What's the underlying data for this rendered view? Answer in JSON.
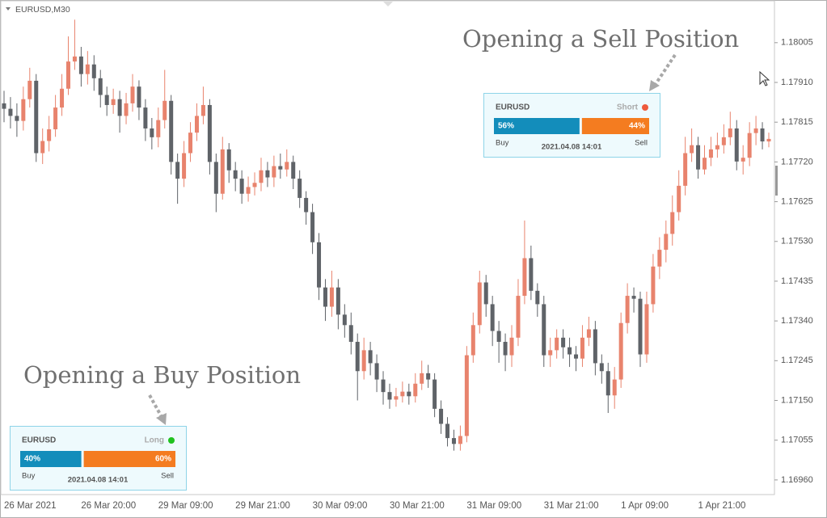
{
  "chart_data": {
    "type": "candlestick",
    "title": "EURUSD,M30",
    "up_color": "#e8836d",
    "down_color": "#5f6368",
    "ylim": [
      1.16925,
      1.18107
    ],
    "yticks": [
      1.18005,
      {
        "value": 1.1791,
        "label": "1.17910"
      },
      1.17815,
      {
        "value": 1.1772,
        "label": "1.17720"
      },
      1.17625,
      {
        "value": 1.1753,
        "label": "1.17530"
      },
      1.17435,
      {
        "value": 1.1734,
        "label": "1.17340"
      },
      1.17245,
      {
        "value": 1.1715,
        "label": "1.17150"
      },
      1.17055,
      {
        "value": 1.1696,
        "label": "1.16960"
      }
    ],
    "annotations": [
      "Opening a Sell Position",
      "Opening a Buy Position"
    ],
    "categories": [
      "26 Mar 2021",
      null,
      null,
      null,
      null,
      null,
      null,
      null,
      null,
      null,
      null,
      null,
      "26 Mar 20:00",
      null,
      null,
      null,
      null,
      null,
      null,
      null,
      null,
      null,
      null,
      null,
      "29 Mar 09:00",
      null,
      null,
      null,
      null,
      null,
      null,
      null,
      null,
      null,
      null,
      null,
      "29 Mar 21:00",
      null,
      null,
      null,
      null,
      null,
      null,
      null,
      null,
      null,
      null,
      null,
      "30 Mar 09:00",
      null,
      null,
      null,
      null,
      null,
      null,
      null,
      null,
      null,
      null,
      null,
      "30 Mar 21:00",
      null,
      null,
      null,
      null,
      null,
      null,
      null,
      null,
      null,
      null,
      null,
      "31 Mar 09:00",
      null,
      null,
      null,
      null,
      null,
      null,
      null,
      null,
      null,
      null,
      null,
      "31 Mar 21:00",
      null,
      null,
      null,
      null,
      null,
      null,
      null,
      null,
      null,
      null,
      null,
      "1 Apr 09:00",
      null,
      null,
      null,
      null,
      null,
      null,
      null,
      null,
      null,
      null,
      null,
      "1 Apr 21:00",
      null,
      null,
      null,
      null,
      null,
      null,
      null,
      null,
      null,
      null,
      null
    ],
    "candles": [
      [
        1.1786,
        1.1789,
        1.17815,
        1.17847
      ],
      [
        1.17847,
        1.17875,
        1.178,
        1.1783
      ],
      [
        1.1783,
        1.1786,
        1.1778,
        1.17818
      ],
      [
        1.17818,
        1.179,
        1.17795,
        1.1787
      ],
      [
        1.1787,
        1.17945,
        1.1785,
        1.17914
      ],
      [
        1.17914,
        1.1793,
        1.1772,
        1.17741
      ],
      [
        1.17741,
        1.178,
        1.17715,
        1.1777
      ],
      [
        1.1777,
        1.1783,
        1.17745,
        1.17798
      ],
      [
        1.17798,
        1.1788,
        1.1778,
        1.1785
      ],
      [
        1.1785,
        1.1793,
        1.1783,
        1.17895
      ],
      [
        1.17895,
        1.1802,
        1.1788,
        1.1796
      ],
      [
        1.1796,
        1.1806,
        1.1794,
        1.17972
      ],
      [
        1.17972,
        1.17995,
        1.179,
        1.1793
      ],
      [
        1.1793,
        1.17985,
        1.17905,
        1.17953
      ],
      [
        1.17953,
        1.17975,
        1.1789,
        1.1792
      ],
      [
        1.1792,
        1.1794,
        1.1785,
        1.1788
      ],
      [
        1.1788,
        1.179,
        1.1783,
        1.17856
      ],
      [
        1.17856,
        1.17895,
        1.17835,
        1.1787
      ],
      [
        1.1787,
        1.1789,
        1.1779,
        1.1783
      ],
      [
        1.1783,
        1.17885,
        1.1781,
        1.1786
      ],
      [
        1.1786,
        1.1793,
        1.1784,
        1.179
      ],
      [
        1.179,
        1.17915,
        1.1782,
        1.1785
      ],
      [
        1.1785,
        1.1787,
        1.1777,
        1.178
      ],
      [
        1.178,
        1.17825,
        1.1775,
        1.17779
      ],
      [
        1.17779,
        1.1785,
        1.17755,
        1.1782
      ],
      [
        1.1782,
        1.1794,
        1.178,
        1.17866
      ],
      [
        1.17866,
        1.1788,
        1.1769,
        1.1772
      ],
      [
        1.1772,
        1.1774,
        1.1762,
        1.1768
      ],
      [
        1.1768,
        1.1777,
        1.1766,
        1.17741
      ],
      [
        1.17741,
        1.17815,
        1.1772,
        1.1779
      ],
      [
        1.1779,
        1.1786,
        1.1777,
        1.1783
      ],
      [
        1.1783,
        1.179,
        1.1781,
        1.17856
      ],
      [
        1.17856,
        1.1787,
        1.1769,
        1.1772
      ],
      [
        1.1772,
        1.1774,
        1.176,
        1.17644
      ],
      [
        1.17644,
        1.1778,
        1.1763,
        1.1775
      ],
      [
        1.1775,
        1.17765,
        1.1767,
        1.177
      ],
      [
        1.177,
        1.1772,
        1.1765,
        1.1768
      ],
      [
        1.1768,
        1.177,
        1.1762,
        1.17644
      ],
      [
        1.17644,
        1.17685,
        1.17625,
        1.1766
      ],
      [
        1.1766,
        1.17695,
        1.1764,
        1.1767
      ],
      [
        1.1767,
        1.1773,
        1.1765,
        1.177
      ],
      [
        1.177,
        1.1772,
        1.1766,
        1.17683
      ],
      [
        1.17683,
        1.17735,
        1.1766,
        1.1771
      ],
      [
        1.1771,
        1.1774,
        1.1768,
        1.17702
      ],
      [
        1.17702,
        1.1775,
        1.17685,
        1.1772
      ],
      [
        1.1772,
        1.17735,
        1.17655,
        1.1768
      ],
      [
        1.1768,
        1.177,
        1.1761,
        1.17634
      ],
      [
        1.17634,
        1.1765,
        1.1757,
        1.176
      ],
      [
        1.176,
        1.1762,
        1.175,
        1.17528
      ],
      [
        1.17528,
        1.1755,
        1.1739,
        1.1742
      ],
      [
        1.1742,
        1.1744,
        1.1734,
        1.17374
      ],
      [
        1.17374,
        1.1746,
        1.1735,
        1.1742
      ],
      [
        1.1742,
        1.1744,
        1.1732,
        1.17355
      ],
      [
        1.17355,
        1.1738,
        1.173,
        1.1733
      ],
      [
        1.1733,
        1.1736,
        1.1726,
        1.1729
      ],
      [
        1.1729,
        1.1731,
        1.1715,
        1.1722
      ],
      [
        1.1722,
        1.173,
        1.172,
        1.1727
      ],
      [
        1.1727,
        1.1729,
        1.1721,
        1.17239
      ],
      [
        1.17239,
        1.1726,
        1.1717,
        1.172
      ],
      [
        1.172,
        1.1722,
        1.1714,
        1.1717
      ],
      [
        1.1717,
        1.1719,
        1.1713,
        1.17152
      ],
      [
        1.17152,
        1.1718,
        1.17135,
        1.1716
      ],
      [
        1.1716,
        1.17195,
        1.17145,
        1.17171
      ],
      [
        1.17171,
        1.1719,
        1.1714,
        1.1716
      ],
      [
        1.1716,
        1.17215,
        1.17145,
        1.1719
      ],
      [
        1.1719,
        1.17245,
        1.17175,
        1.17215
      ],
      [
        1.17215,
        1.17235,
        1.1718,
        1.172
      ],
      [
        1.172,
        1.17215,
        1.1711,
        1.1713
      ],
      [
        1.1713,
        1.1715,
        1.1707,
        1.17094
      ],
      [
        1.17094,
        1.1711,
        1.1704,
        1.1706
      ],
      [
        1.1706,
        1.1708,
        1.1703,
        1.17046
      ],
      [
        1.17046,
        1.1709,
        1.1703,
        1.17065
      ],
      [
        1.17065,
        1.1728,
        1.1705,
        1.17258
      ],
      [
        1.17258,
        1.1736,
        1.1724,
        1.1733
      ],
      [
        1.1733,
        1.1746,
        1.1731,
        1.17432
      ],
      [
        1.17432,
        1.1745,
        1.1735,
        1.1738
      ],
      [
        1.1738,
        1.174,
        1.1728,
        1.17316
      ],
      [
        1.17316,
        1.1734,
        1.1724,
        1.1729
      ],
      [
        1.1729,
        1.1731,
        1.1722,
        1.17258
      ],
      [
        1.17258,
        1.1733,
        1.1723,
        1.173
      ],
      [
        1.173,
        1.1744,
        1.1728,
        1.174
      ],
      [
        1.174,
        1.1758,
        1.1738,
        1.1749
      ],
      [
        1.1749,
        1.1752,
        1.1739,
        1.17412
      ],
      [
        1.17412,
        1.1743,
        1.1735,
        1.1738
      ],
      [
        1.1738,
        1.174,
        1.1723,
        1.17258
      ],
      [
        1.17258,
        1.173,
        1.1723,
        1.1727
      ],
      [
        1.1727,
        1.1732,
        1.1725,
        1.173
      ],
      [
        1.173,
        1.1732,
        1.1725,
        1.17277
      ],
      [
        1.17277,
        1.173,
        1.1723,
        1.1726
      ],
      [
        1.1726,
        1.1728,
        1.1722,
        1.1725
      ],
      [
        1.1725,
        1.1733,
        1.1723,
        1.173
      ],
      [
        1.173,
        1.1735,
        1.1728,
        1.1732
      ],
      [
        1.1732,
        1.1734,
        1.1721,
        1.17239
      ],
      [
        1.17239,
        1.1726,
        1.1719,
        1.1722
      ],
      [
        1.1722,
        1.1724,
        1.1712,
        1.17162
      ],
      [
        1.17162,
        1.1723,
        1.1713,
        1.172
      ],
      [
        1.172,
        1.1736,
        1.1718,
        1.17335
      ],
      [
        1.17335,
        1.1743,
        1.1731,
        1.174
      ],
      [
        1.174,
        1.1742,
        1.1736,
        1.17393
      ],
      [
        1.17393,
        1.1741,
        1.1723,
        1.1726
      ],
      [
        1.1726,
        1.1741,
        1.1724,
        1.1738
      ],
      [
        1.1738,
        1.175,
        1.1736,
        1.1747
      ],
      [
        1.1747,
        1.1754,
        1.1744,
        1.1751
      ],
      [
        1.1751,
        1.1758,
        1.1748,
        1.17548
      ],
      [
        1.17548,
        1.1764,
        1.1752,
        1.176
      ],
      [
        1.176,
        1.177,
        1.1758,
        1.17663
      ],
      [
        1.17663,
        1.1778,
        1.1764,
        1.17741
      ],
      [
        1.17741,
        1.178,
        1.1772,
        1.1776
      ],
      [
        1.1776,
        1.1778,
        1.1768,
        1.17702
      ],
      [
        1.17702,
        1.1776,
        1.1769,
        1.1773
      ],
      [
        1.1773,
        1.1778,
        1.1771,
        1.1775
      ],
      [
        1.1775,
        1.1779,
        1.1773,
        1.1776
      ],
      [
        1.1776,
        1.1781,
        1.1774,
        1.17779
      ],
      [
        1.17779,
        1.1784,
        1.1776,
        1.178
      ],
      [
        1.178,
        1.1782,
        1.177,
        1.17721
      ],
      [
        1.17721,
        1.1776,
        1.1769,
        1.1773
      ],
      [
        1.1773,
        1.17815,
        1.1771,
        1.17789
      ],
      [
        1.17789,
        1.1783,
        1.1776,
        1.178
      ],
      [
        1.178,
        1.17815,
        1.1775,
        1.17769
      ],
      [
        1.17769,
        1.1779,
        1.17755,
        1.17775
      ]
    ]
  },
  "widgets": [
    {
      "symbol": "EURUSD",
      "status": "Short",
      "status_color": "#ee5a3c",
      "buy": 56,
      "sell": 44,
      "value_labels": [
        "56%",
        "44%"
      ],
      "buy_text": "Buy",
      "sell_text": "Sell",
      "time": "2021.04.08 14:01"
    },
    {
      "symbol": "EURUSD",
      "status": "Long",
      "status_color": "#1fc21f",
      "buy": 40,
      "sell": 60,
      "value_labels": [
        "40%",
        "60%"
      ],
      "buy_text": "Buy",
      "sell_text": "Sell",
      "time": "2021.04.08 14:01"
    }
  ]
}
